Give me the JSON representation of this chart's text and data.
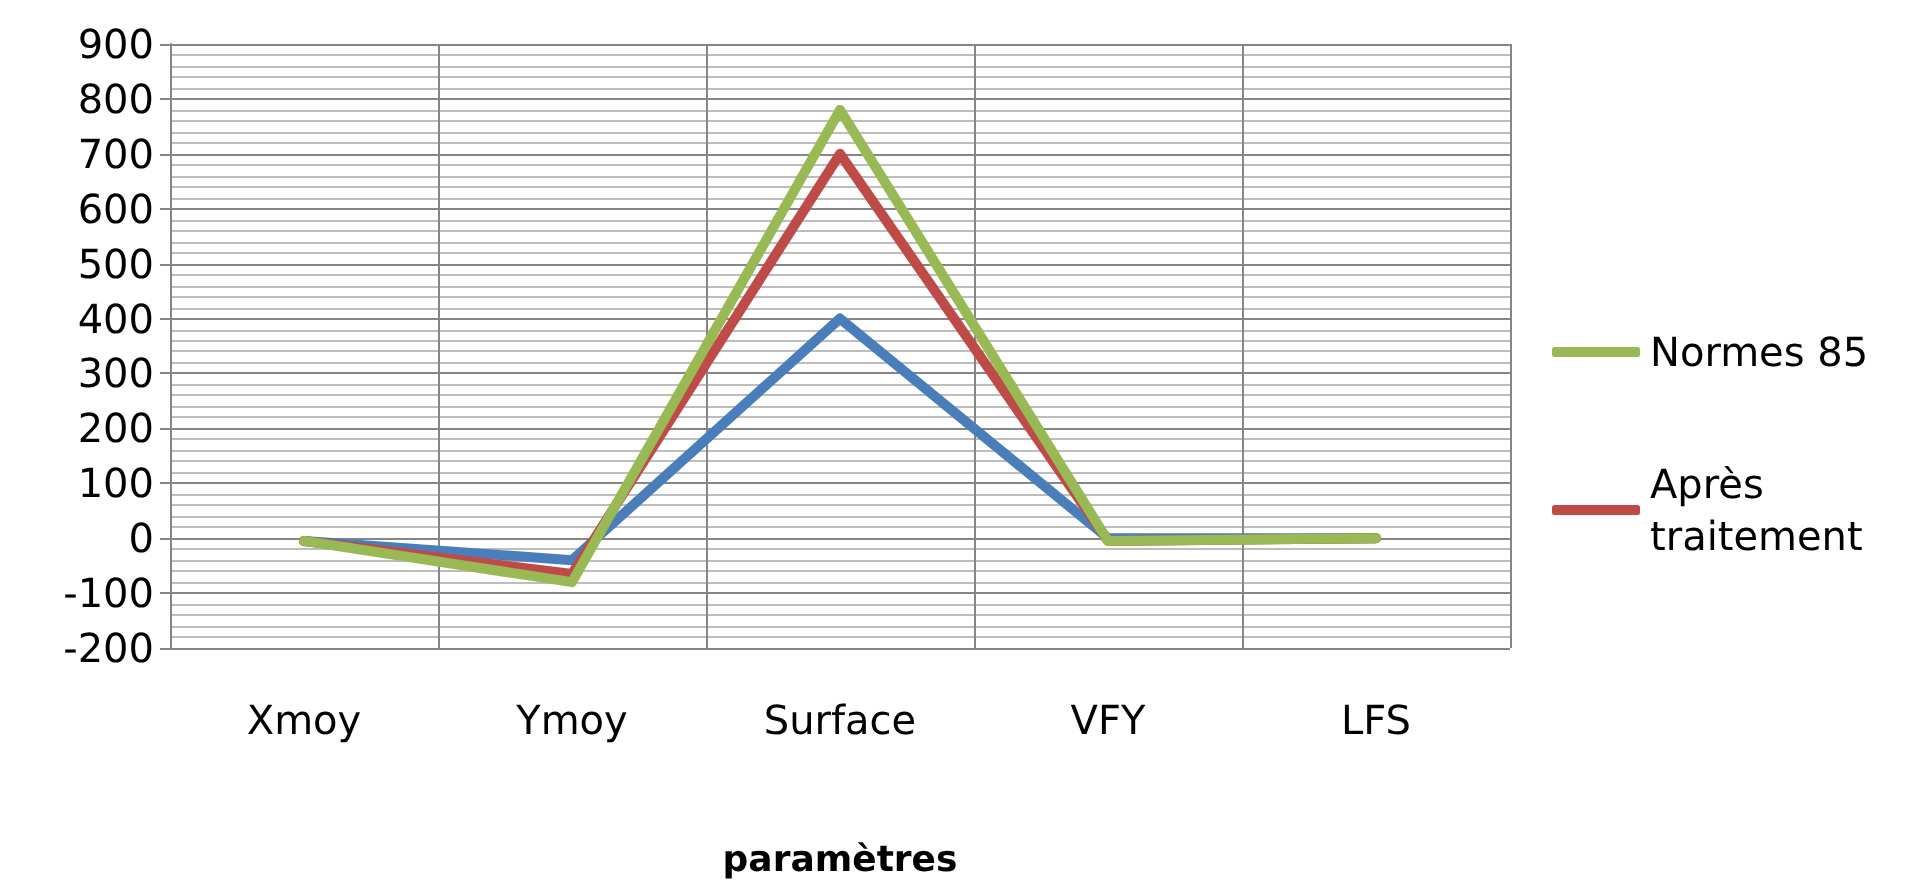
{
  "chart_data": {
    "type": "line",
    "xlabel": "paramètres",
    "categories": [
      "Xmoy",
      "Ymoy",
      "Surface",
      "VFY",
      "LFS"
    ],
    "series": [
      {
        "color": "#4a7ebb",
        "values": [
          -5,
          -40,
          400,
          0,
          0
        ]
      },
      {
        "name": "Après traitement",
        "color": "#be4b48",
        "values": [
          -5,
          -65,
          700,
          -5,
          0
        ]
      },
      {
        "name": "Normes 85",
        "color": "#98b954",
        "values": [
          -5,
          -80,
          780,
          -5,
          0
        ]
      }
    ],
    "ylim": [
      -200,
      900
    ],
    "yticks": [
      -200,
      -100,
      0,
      100,
      200,
      300,
      400,
      500,
      600,
      700,
      800,
      900
    ],
    "grid": true,
    "legend": "right",
    "marker": "none",
    "line_style": "solid"
  }
}
